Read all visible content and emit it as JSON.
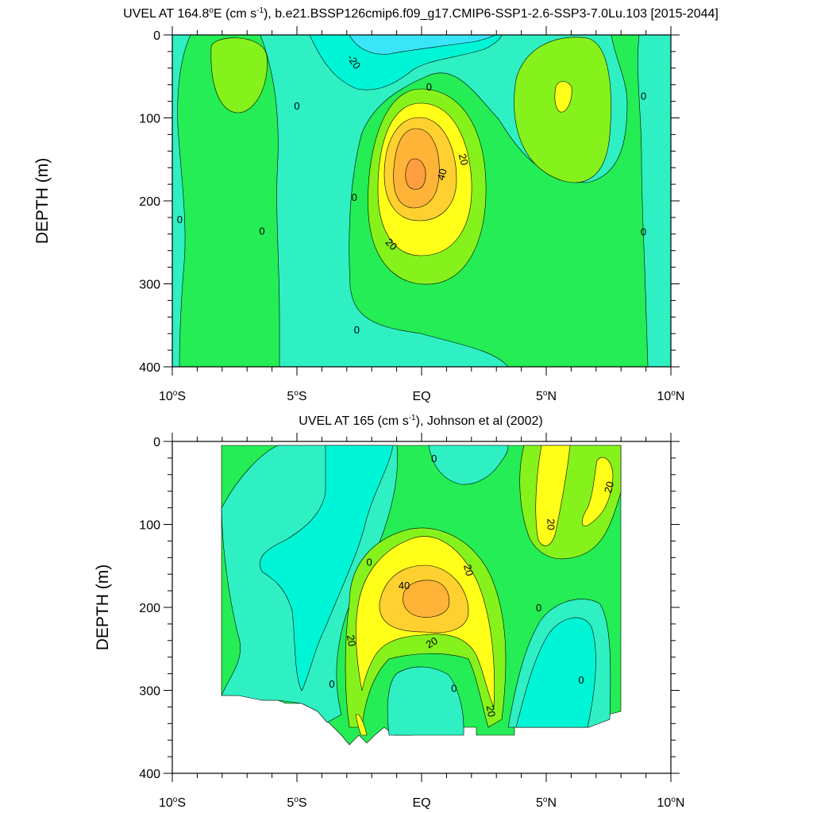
{
  "chart_data": [
    {
      "type": "heatmap",
      "title": "UVEL AT 164.8",
      "title_deg": "o",
      "title_tail": "E (cm s",
      "title_exp": "-1",
      "title_rest": "), b.e21.BSSP126cmip6.f09_g17.CMIP6-SSP1-2.6-SSP3-7.0Lu.103 [2015-2044]",
      "ylabel": "DEPTH (m)",
      "xlim": [
        -10,
        10
      ],
      "ylim": [
        0,
        400
      ],
      "y_ticks": [
        "0",
        "100",
        "200",
        "300",
        "400"
      ],
      "x_ticks": [
        {
          "num": "10",
          "sup": "o",
          "hem": "S"
        },
        {
          "num": "5",
          "sup": "o",
          "hem": "S"
        },
        {
          "num": "EQ",
          "sup": "",
          "hem": ""
        },
        {
          "num": "5",
          "sup": "o",
          "hem": "N"
        },
        {
          "num": "10",
          "sup": "o",
          "hem": "N"
        }
      ],
      "contour_interval": 10,
      "contour_labels": [
        {
          "text": "-20",
          "x": -2.7,
          "y": 32,
          "rot": 55
        },
        {
          "text": "0",
          "x": 0.3,
          "y": 62,
          "rot": 0
        },
        {
          "text": "0",
          "x": -5.0,
          "y": 85,
          "rot": 0
        },
        {
          "text": "0",
          "x": 8.9,
          "y": 73,
          "rot": 0
        },
        {
          "text": "20",
          "x": 1.7,
          "y": 150,
          "rot": 75
        },
        {
          "text": "40",
          "x": 0.8,
          "y": 168,
          "rot": -75
        },
        {
          "text": "0",
          "x": -2.7,
          "y": 195,
          "rot": 0
        },
        {
          "text": "0",
          "x": -9.7,
          "y": 222,
          "rot": 0
        },
        {
          "text": "0",
          "x": -6.4,
          "y": 236,
          "rot": 0
        },
        {
          "text": "0",
          "x": 8.9,
          "y": 237,
          "rot": 0
        },
        {
          "text": "20",
          "x": -1.2,
          "y": 252,
          "rot": 45
        },
        {
          "text": "0",
          "x": -2.6,
          "y": 355,
          "rot": 0
        }
      ]
    },
    {
      "type": "heatmap",
      "title": "UVEL AT 165 (cm s",
      "title_exp": "-1",
      "title_rest": "), Johnson et al (2002)",
      "ylabel": "DEPTH (m)",
      "xlim": [
        -10,
        10
      ],
      "ylim": [
        0,
        400
      ],
      "data_extent_lon": [
        -8,
        8
      ],
      "y_ticks": [
        "0",
        "100",
        "200",
        "300",
        "400"
      ],
      "x_ticks": [
        {
          "num": "10",
          "sup": "o",
          "hem": "S"
        },
        {
          "num": "5",
          "sup": "o",
          "hem": "S"
        },
        {
          "num": "EQ",
          "sup": "",
          "hem": ""
        },
        {
          "num": "5",
          "sup": "o",
          "hem": "N"
        },
        {
          "num": "10",
          "sup": "o",
          "hem": "N"
        }
      ],
      "contour_interval": 10,
      "contour_labels": [
        {
          "text": "0",
          "x": 0.5,
          "y": 20,
          "rot": 0
        },
        {
          "text": "20",
          "x": 7.5,
          "y": 55,
          "rot": -75
        },
        {
          "text": "20",
          "x": 5.2,
          "y": 100,
          "rot": 90
        },
        {
          "text": "0",
          "x": -2.1,
          "y": 145,
          "rot": 0
        },
        {
          "text": "20",
          "x": 1.9,
          "y": 155,
          "rot": 75
        },
        {
          "text": "40",
          "x": -0.7,
          "y": 173,
          "rot": 0
        },
        {
          "text": "0",
          "x": 4.7,
          "y": 200,
          "rot": 0
        },
        {
          "text": "20",
          "x": -2.8,
          "y": 240,
          "rot": 80
        },
        {
          "text": "20",
          "x": 0.4,
          "y": 242,
          "rot": -30
        },
        {
          "text": "0",
          "x": -3.6,
          "y": 292,
          "rot": 0
        },
        {
          "text": "0",
          "x": 1.3,
          "y": 297,
          "rot": 0
        },
        {
          "text": "0",
          "x": 6.4,
          "y": 287,
          "rot": 0
        },
        {
          "text": "20",
          "x": 2.8,
          "y": 325,
          "rot": 80
        }
      ]
    }
  ],
  "colors": {
    "lt_m30": "#38e6f8",
    "m30_m10": "#00f5d6",
    "m10_0": "#2ff0c2",
    "0_10": "#25ed55",
    "10_20": "#86f21c",
    "20_30": "#ffff19",
    "30_40": "#ffd02f",
    "gt_40": "#ffb438",
    "contour": "#000000"
  }
}
